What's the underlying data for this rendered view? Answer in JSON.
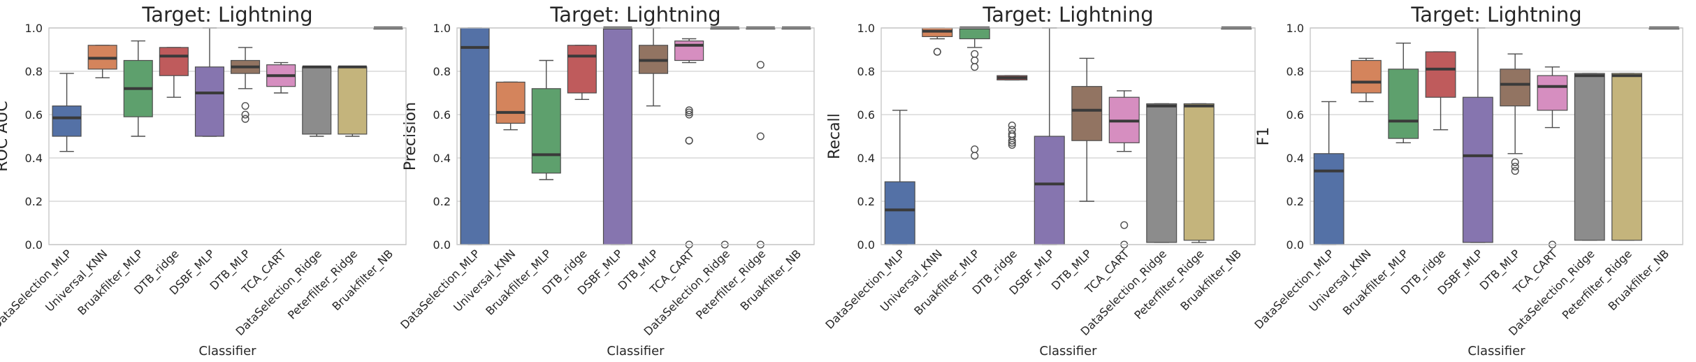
{
  "chart_data": [
    {
      "type": "box",
      "title": "Target: Lightning",
      "xlabel": "Classifier",
      "ylabel": "ROC AUC",
      "ylim": [
        0,
        1
      ],
      "yticks": [
        "0.0",
        "0.2",
        "0.4",
        "0.6",
        "0.8",
        "1.0"
      ],
      "grid": true,
      "categories": [
        "DataSelection_MLP",
        "Universal_KNN",
        "Bruakfilter_MLP",
        "DTB_ridge",
        "DSBF_MLP",
        "DTB_MLP",
        "TCA_CART",
        "DataSelection_Ridge",
        "Peterfilter_Ridge",
        "Bruakfilter_NB"
      ],
      "boxes": [
        {
          "whisker_low": 0.43,
          "q1": 0.5,
          "median": 0.585,
          "q3": 0.64,
          "whisker_high": 0.79,
          "outliers": []
        },
        {
          "whisker_low": 0.77,
          "q1": 0.81,
          "median": 0.86,
          "q3": 0.92,
          "whisker_high": 0.92,
          "outliers": []
        },
        {
          "whisker_low": 0.5,
          "q1": 0.59,
          "median": 0.72,
          "q3": 0.85,
          "whisker_high": 0.94,
          "outliers": []
        },
        {
          "whisker_low": 0.68,
          "q1": 0.78,
          "median": 0.87,
          "q3": 0.91,
          "whisker_high": 0.91,
          "outliers": []
        },
        {
          "whisker_low": 0.5,
          "q1": 0.5,
          "median": 0.7,
          "q3": 0.82,
          "whisker_high": 1.0,
          "outliers": []
        },
        {
          "whisker_low": 0.72,
          "q1": 0.79,
          "median": 0.82,
          "q3": 0.85,
          "whisker_high": 0.91,
          "outliers": [
            0.64,
            0.6,
            0.58
          ]
        },
        {
          "whisker_low": 0.7,
          "q1": 0.73,
          "median": 0.78,
          "q3": 0.83,
          "whisker_high": 0.84,
          "outliers": []
        },
        {
          "whisker_low": 0.5,
          "q1": 0.51,
          "median": 0.82,
          "q3": 0.82,
          "whisker_high": 0.82,
          "outliers": []
        },
        {
          "whisker_low": 0.5,
          "q1": 0.51,
          "median": 0.82,
          "q3": 0.82,
          "whisker_high": 0.82,
          "outliers": []
        },
        {
          "whisker_low": 1.0,
          "q1": 1.0,
          "median": 1.0,
          "q3": 1.0,
          "whisker_high": 1.0,
          "outliers": []
        }
      ]
    },
    {
      "type": "box",
      "title": "Target: Lightning",
      "xlabel": "Classifier",
      "ylabel": "Precision",
      "ylim": [
        0,
        1
      ],
      "yticks": [
        "0.0",
        "0.2",
        "0.4",
        "0.6",
        "0.8",
        "1.0"
      ],
      "grid": true,
      "categories": [
        "DataSelection_MLP",
        "Universal_KNN",
        "Bruakfilter_MLP",
        "DTB_ridge",
        "DSBF_MLP",
        "DTB_MLP",
        "TCA_CART",
        "DataSelection_Ridge",
        "Peterfilter_Ridge",
        "Bruakfilter_NB"
      ],
      "boxes": [
        {
          "whisker_low": 0.0,
          "q1": 0.0,
          "median": 0.91,
          "q3": 1.0,
          "whisker_high": 1.0,
          "outliers": []
        },
        {
          "whisker_low": 0.53,
          "q1": 0.56,
          "median": 0.61,
          "q3": 0.75,
          "whisker_high": 0.75,
          "outliers": []
        },
        {
          "whisker_low": 0.3,
          "q1": 0.33,
          "median": 0.415,
          "q3": 0.72,
          "whisker_high": 0.85,
          "outliers": []
        },
        {
          "whisker_low": 0.67,
          "q1": 0.7,
          "median": 0.87,
          "q3": 0.92,
          "whisker_high": 0.92,
          "outliers": []
        },
        {
          "whisker_low": 0.0,
          "q1": 0.0,
          "median": 1.0,
          "q3": 1.0,
          "whisker_high": 1.0,
          "outliers": []
        },
        {
          "whisker_low": 0.64,
          "q1": 0.79,
          "median": 0.85,
          "q3": 0.92,
          "whisker_high": 1.0,
          "outliers": []
        },
        {
          "whisker_low": 0.84,
          "q1": 0.85,
          "median": 0.92,
          "q3": 0.94,
          "whisker_high": 0.95,
          "outliers": [
            0.62,
            0.61,
            0.6,
            0.48,
            0.48,
            0.0
          ]
        },
        {
          "whisker_low": 1.0,
          "q1": 1.0,
          "median": 1.0,
          "q3": 1.0,
          "whisker_high": 1.0,
          "outliers": [
            0.0
          ]
        },
        {
          "whisker_low": 1.0,
          "q1": 1.0,
          "median": 1.0,
          "q3": 1.0,
          "whisker_high": 1.0,
          "outliers": [
            0.83,
            0.5,
            0.0
          ]
        },
        {
          "whisker_low": 1.0,
          "q1": 1.0,
          "median": 1.0,
          "q3": 1.0,
          "whisker_high": 1.0,
          "outliers": []
        }
      ]
    },
    {
      "type": "box",
      "title": "Target: Lightning",
      "xlabel": "Classifier",
      "ylabel": "Recall",
      "ylim": [
        0,
        1
      ],
      "yticks": [
        "0.0",
        "0.2",
        "0.4",
        "0.6",
        "0.8",
        "1.0"
      ],
      "grid": true,
      "categories": [
        "DataSelection_MLP",
        "Universal_KNN",
        "Bruakfilter_MLP",
        "DTB_ridge",
        "DSBF_MLP",
        "DTB_MLP",
        "TCA_CART",
        "DataSelection_Ridge",
        "Peterfilter_Ridge",
        "Bruakfilter_NB"
      ],
      "boxes": [
        {
          "whisker_low": 0.0,
          "q1": 0.0,
          "median": 0.16,
          "q3": 0.29,
          "whisker_high": 0.62,
          "outliers": []
        },
        {
          "whisker_low": 0.95,
          "q1": 0.96,
          "median": 0.985,
          "q3": 1.0,
          "whisker_high": 1.0,
          "outliers": [
            0.89,
            0.89
          ]
        },
        {
          "whisker_low": 0.91,
          "q1": 0.95,
          "median": 1.0,
          "q3": 1.0,
          "whisker_high": 1.0,
          "outliers": [
            0.88,
            0.85,
            0.82,
            0.44,
            0.41
          ]
        },
        {
          "whisker_low": 0.76,
          "q1": 0.76,
          "median": 0.77,
          "q3": 0.78,
          "whisker_high": 0.78,
          "outliers": [
            0.55,
            0.53,
            0.51,
            0.5,
            0.48,
            0.47,
            0.46
          ]
        },
        {
          "whisker_low": 0.0,
          "q1": 0.0,
          "median": 0.28,
          "q3": 0.5,
          "whisker_high": 1.0,
          "outliers": []
        },
        {
          "whisker_low": 0.2,
          "q1": 0.48,
          "median": 0.62,
          "q3": 0.73,
          "whisker_high": 0.86,
          "outliers": []
        },
        {
          "whisker_low": 0.43,
          "q1": 0.47,
          "median": 0.57,
          "q3": 0.68,
          "whisker_high": 0.71,
          "outliers": [
            0.09,
            0.0
          ]
        },
        {
          "whisker_low": 0.01,
          "q1": 0.01,
          "median": 0.64,
          "q3": 0.65,
          "whisker_high": 0.65,
          "outliers": []
        },
        {
          "whisker_low": 0.01,
          "q1": 0.02,
          "median": 0.64,
          "q3": 0.65,
          "whisker_high": 0.65,
          "outliers": []
        },
        {
          "whisker_low": 1.0,
          "q1": 1.0,
          "median": 1.0,
          "q3": 1.0,
          "whisker_high": 1.0,
          "outliers": []
        }
      ]
    },
    {
      "type": "box",
      "title": "Target: Lightning",
      "xlabel": "Classifier",
      "ylabel": "F1",
      "ylim": [
        0,
        1
      ],
      "yticks": [
        "0.0",
        "0.2",
        "0.4",
        "0.6",
        "0.8",
        "1.0"
      ],
      "grid": true,
      "categories": [
        "DataSelection_MLP",
        "Universal_KNN",
        "Bruakfilter_MLP",
        "DTB_ridge",
        "DSBF_MLP",
        "DTB_MLP",
        "TCA_CART",
        "DataSelection_Ridge",
        "Peterfilter_Ridge",
        "Bruakfilter_NB"
      ],
      "boxes": [
        {
          "whisker_low": 0.0,
          "q1": 0.0,
          "median": 0.34,
          "q3": 0.42,
          "whisker_high": 0.66,
          "outliers": []
        },
        {
          "whisker_low": 0.66,
          "q1": 0.7,
          "median": 0.75,
          "q3": 0.85,
          "whisker_high": 0.86,
          "outliers": []
        },
        {
          "whisker_low": 0.47,
          "q1": 0.49,
          "median": 0.57,
          "q3": 0.81,
          "whisker_high": 0.93,
          "outliers": []
        },
        {
          "whisker_low": 0.53,
          "q1": 0.68,
          "median": 0.81,
          "q3": 0.89,
          "whisker_high": 0.89,
          "outliers": []
        },
        {
          "whisker_low": 0.01,
          "q1": 0.01,
          "median": 0.41,
          "q3": 0.68,
          "whisker_high": 1.0,
          "outliers": []
        },
        {
          "whisker_low": 0.42,
          "q1": 0.64,
          "median": 0.74,
          "q3": 0.81,
          "whisker_high": 0.88,
          "outliers": [
            0.38,
            0.36,
            0.34
          ]
        },
        {
          "whisker_low": 0.54,
          "q1": 0.62,
          "median": 0.73,
          "q3": 0.78,
          "whisker_high": 0.82,
          "outliers": [
            0.0
          ]
        },
        {
          "whisker_low": 0.02,
          "q1": 0.02,
          "median": 0.78,
          "q3": 0.79,
          "whisker_high": 0.79,
          "outliers": []
        },
        {
          "whisker_low": 0.02,
          "q1": 0.02,
          "median": 0.78,
          "q3": 0.79,
          "whisker_high": 0.79,
          "outliers": []
        },
        {
          "whisker_low": 1.0,
          "q1": 1.0,
          "median": 1.0,
          "q3": 1.0,
          "whisker_high": 1.0,
          "outliers": []
        }
      ]
    }
  ],
  "colors": {
    "boxes": [
      "#5471a6",
      "#d4845c",
      "#5ea06d",
      "#bf5b5c",
      "#8675af",
      "#927462",
      "#d68ec0",
      "#8c8c8c",
      "#c4b47c",
      "#84b8cc"
    ],
    "median": "#3a3a3a",
    "whisker": "#4d4d4d",
    "grid": "#d8d8d8",
    "axes": "#c8c8c8"
  }
}
